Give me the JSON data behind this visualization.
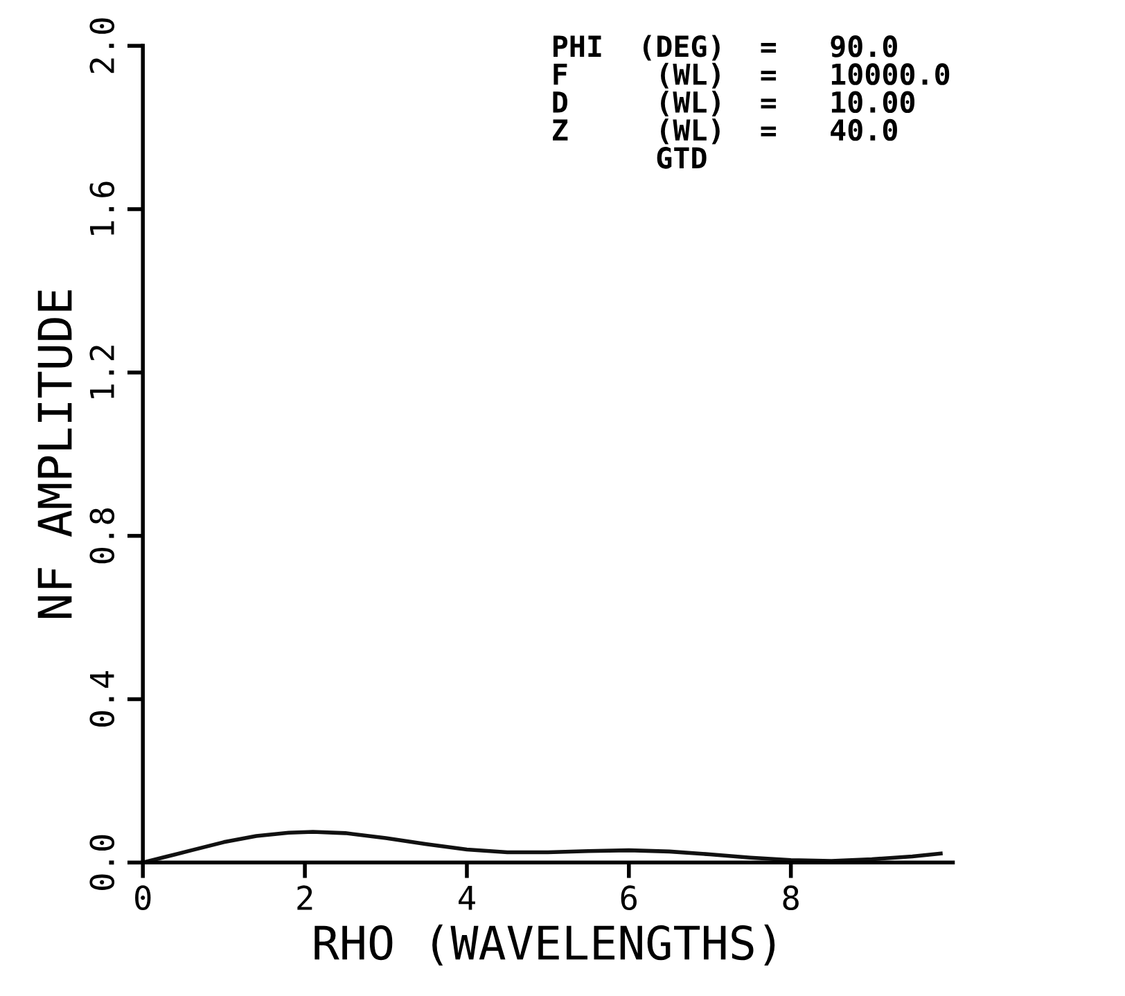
{
  "chart_data": {
    "type": "line",
    "xlabel": "RHO (WAVELENGTHS)",
    "ylabel": "NF AMPLITUDE",
    "x": [
      0,
      0.3,
      0.6,
      1.0,
      1.4,
      1.8,
      2.1,
      2.5,
      3.0,
      3.5,
      4.0,
      4.5,
      5.0,
      5.5,
      6.0,
      6.5,
      7.0,
      7.5,
      8.0,
      8.5,
      9.0,
      9.5,
      9.85
    ],
    "series": [
      {
        "color": "#111111",
        "values": [
          0,
          0.015,
          0.03,
          0.05,
          0.065,
          0.073,
          0.075,
          0.072,
          0.06,
          0.045,
          0.032,
          0.025,
          0.025,
          0.028,
          0.03,
          0.027,
          0.02,
          0.012,
          0.006,
          0.004,
          0.008,
          0.015,
          0.022
        ]
      }
    ],
    "xlim": [
      0,
      10
    ],
    "xticks": [
      0,
      2,
      4,
      6,
      8
    ],
    "ylim": [
      0,
      2.0
    ],
    "yticks": [
      {
        "value": 0,
        "label": "0.0"
      },
      0.4,
      0.8,
      1.2,
      1.6,
      {
        "value": 2,
        "label": "2.0"
      }
    ],
    "grid": false,
    "legend": false,
    "marker": "none",
    "line_style": "solid",
    "annotations": [
      "PHI  (DEG)  =   90.0",
      "F     (WL)  =   10000.0",
      "D     (WL)  =   10.00",
      "Z     (WL)  =   40.0",
      "      GTD"
    ]
  }
}
